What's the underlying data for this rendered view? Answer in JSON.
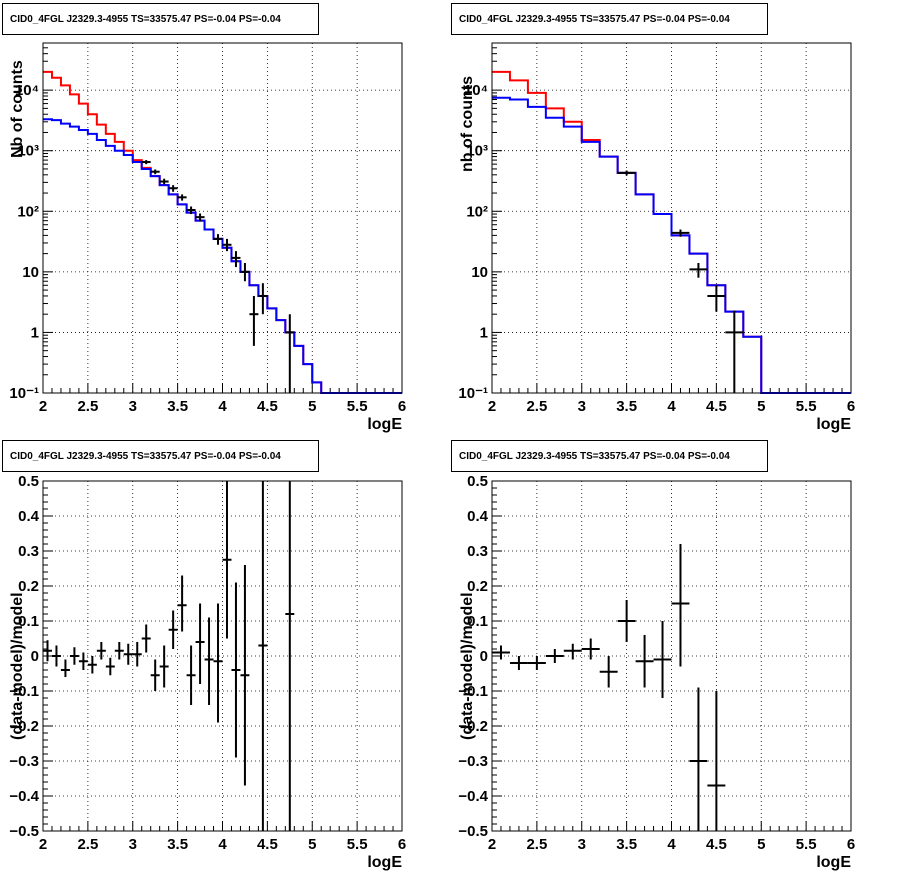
{
  "chart_data": [
    {
      "type": "histogram",
      "title": "CID0_4FGL J2329.3-4955 TS=33575.47 PS=-0.04 PS=-0.04",
      "xlabel": "logE",
      "ylabel": "Nb of counts",
      "xlim": [
        2,
        6
      ],
      "ylim": [
        0.1,
        60000
      ],
      "ylog": true,
      "grid": true,
      "xticks": [
        "2",
        "2.5",
        "3",
        "3.5",
        "4",
        "4.5",
        "5",
        "5.5",
        "6"
      ],
      "yticks": [
        {
          "v": 0.1,
          "label": "10⁻¹"
        },
        {
          "v": 1,
          "label": "1"
        },
        {
          "v": 10,
          "label": "10"
        },
        {
          "v": 100,
          "label": "10²"
        },
        {
          "v": 1000,
          "label": "10³"
        },
        {
          "v": 10000,
          "label": "10⁴"
        }
      ],
      "bin_edges": [
        2.0,
        2.1,
        2.2,
        2.3,
        2.4,
        2.5,
        2.6,
        2.7,
        2.8,
        2.9,
        3.0,
        3.1,
        3.2,
        3.3,
        3.4,
        3.5,
        3.6,
        3.7,
        3.8,
        3.9,
        4.0,
        4.1,
        4.2,
        4.3,
        4.4,
        4.5,
        4.6,
        4.7,
        4.8,
        4.9,
        5.0,
        5.1,
        5.2,
        5.3,
        5.4,
        5.5,
        5.6,
        5.7,
        5.8,
        5.9,
        6.0
      ],
      "series": [
        {
          "color": "#ff0000",
          "values": [
            20000,
            16000,
            12000,
            8500,
            6000,
            4000,
            2700,
            1900,
            1400,
            1000,
            700,
            520,
            380,
            270,
            190,
            130,
            95,
            70,
            50,
            35,
            25,
            15,
            10,
            6,
            4,
            2.5,
            1.6,
            1.0,
            0.6,
            0.3,
            0.15,
            0.1,
            0.1,
            0.1,
            0.1,
            0.1,
            0.1,
            0.1,
            0.1,
            0.1
          ]
        },
        {
          "color": "#0000ff",
          "values": [
            3300,
            3200,
            2800,
            2500,
            2200,
            1900,
            1500,
            1200,
            1000,
            850,
            650,
            500,
            380,
            270,
            190,
            130,
            95,
            70,
            50,
            35,
            25,
            15,
            10,
            6,
            4,
            2.5,
            1.6,
            1.0,
            0.6,
            0.3,
            0.15,
            0.1,
            0.1,
            0.1,
            0.1,
            0.1,
            0.1,
            0.1,
            0.1,
            0.1
          ]
        }
      ],
      "points": [
        {
          "x": 3.15,
          "y": 650,
          "lo": 600,
          "hi": 700
        },
        {
          "x": 3.25,
          "y": 450,
          "lo": 410,
          "hi": 490
        },
        {
          "x": 3.35,
          "y": 310,
          "lo": 280,
          "hi": 345
        },
        {
          "x": 3.45,
          "y": 240,
          "lo": 210,
          "hi": 270
        },
        {
          "x": 3.55,
          "y": 170,
          "lo": 150,
          "hi": 190
        },
        {
          "x": 3.65,
          "y": 105,
          "lo": 90,
          "hi": 120
        },
        {
          "x": 3.75,
          "y": 80,
          "lo": 68,
          "hi": 92
        },
        {
          "x": 3.95,
          "y": 35,
          "lo": 28,
          "hi": 42
        },
        {
          "x": 4.05,
          "y": 28,
          "lo": 22,
          "hi": 35
        },
        {
          "x": 4.15,
          "y": 17,
          "lo": 12,
          "hi": 22
        },
        {
          "x": 4.25,
          "y": 10,
          "lo": 7,
          "hi": 14
        },
        {
          "x": 4.35,
          "y": 2,
          "lo": 0.6,
          "hi": 4
        },
        {
          "x": 4.45,
          "y": 4,
          "lo": 2,
          "hi": 6.5
        },
        {
          "x": 4.75,
          "y": 1,
          "lo": 0.1,
          "hi": 2
        }
      ]
    },
    {
      "type": "histogram",
      "title": "CID0_4FGL J2329.3-4955 TS=33575.47 PS=-0.04 PS=-0.04",
      "xlabel": "logE",
      "ylabel": "nb of counts",
      "xlim": [
        2,
        6
      ],
      "ylim": [
        0.1,
        60000
      ],
      "ylog": true,
      "grid": true,
      "xticks": [
        "2",
        "2.5",
        "3",
        "3.5",
        "4",
        "4.5",
        "5",
        "5.5",
        "6"
      ],
      "yticks": [
        {
          "v": 0.1,
          "label": "10⁻¹"
        },
        {
          "v": 1,
          "label": "1"
        },
        {
          "v": 10,
          "label": "10"
        },
        {
          "v": 100,
          "label": "10²"
        },
        {
          "v": 1000,
          "label": "10³"
        },
        {
          "v": 10000,
          "label": "10⁴"
        }
      ],
      "bin_edges": [
        2.0,
        2.2,
        2.4,
        2.6,
        2.8,
        3.0,
        3.2,
        3.4,
        3.6,
        3.8,
        4.0,
        4.2,
        4.4,
        4.6,
        4.8,
        5.0,
        5.2,
        5.4,
        5.6,
        5.8,
        6.0
      ],
      "series": [
        {
          "color": "#ff0000",
          "values": [
            20000,
            14500,
            9000,
            5000,
            3000,
            1500,
            800,
            430,
            190,
            90,
            40,
            20,
            6,
            2.2,
            0.85,
            0.1,
            0.1,
            0.1,
            0.1,
            0.1
          ]
        },
        {
          "color": "#0000ff",
          "values": [
            7500,
            7000,
            5300,
            3500,
            2500,
            1400,
            800,
            430,
            190,
            90,
            40,
            20,
            6,
            2.2,
            0.85,
            0.1,
            0.1,
            0.1,
            0.1,
            0.1
          ]
        }
      ],
      "points": [
        {
          "x": 3.5,
          "y": 430,
          "lo": 390,
          "hi": 470
        },
        {
          "x": 4.1,
          "y": 44,
          "lo": 38,
          "hi": 50
        },
        {
          "x": 4.3,
          "y": 11,
          "lo": 8,
          "hi": 14
        },
        {
          "x": 4.5,
          "y": 4,
          "lo": 2.2,
          "hi": 6
        },
        {
          "x": 4.7,
          "y": 1,
          "lo": 0.1,
          "hi": 2.3
        }
      ]
    },
    {
      "type": "scatter",
      "title": "CID0_4FGL J2329.3-4955 TS=33575.47 PS=-0.04 PS=-0.04",
      "xlabel": "logE",
      "ylabel": "(data-model)/model",
      "xlim": [
        2,
        6
      ],
      "ylim": [
        -0.5,
        0.5
      ],
      "ylog": false,
      "grid": true,
      "xticks": [
        "2",
        "2.5",
        "3",
        "3.5",
        "4",
        "4.5",
        "5",
        "5.5",
        "6"
      ],
      "yticks": [
        {
          "v": -0.5,
          "label": "−0.5"
        },
        {
          "v": -0.4,
          "label": "−0.4"
        },
        {
          "v": -0.3,
          "label": "−0.3"
        },
        {
          "v": -0.2,
          "label": "−0.2"
        },
        {
          "v": -0.1,
          "label": "−0.1"
        },
        {
          "v": 0,
          "label": "0"
        },
        {
          "v": 0.1,
          "label": "0.1"
        },
        {
          "v": 0.2,
          "label": "0.2"
        },
        {
          "v": 0.3,
          "label": "0.3"
        },
        {
          "v": 0.4,
          "label": "0.4"
        },
        {
          "v": 0.5,
          "label": "0.5"
        }
      ],
      "xhalf": 0.05,
      "points": [
        {
          "x": 2.05,
          "y": 0.015,
          "lo": -0.015,
          "hi": 0.045
        },
        {
          "x": 2.15,
          "y": 0.0,
          "lo": -0.03,
          "hi": 0.03
        },
        {
          "x": 2.25,
          "y": -0.04,
          "lo": -0.06,
          "hi": -0.01
        },
        {
          "x": 2.35,
          "y": 0.0,
          "lo": -0.025,
          "hi": 0.025
        },
        {
          "x": 2.45,
          "y": -0.015,
          "lo": -0.04,
          "hi": 0.01
        },
        {
          "x": 2.55,
          "y": -0.025,
          "lo": -0.05,
          "hi": 0.0
        },
        {
          "x": 2.65,
          "y": 0.015,
          "lo": -0.01,
          "hi": 0.04
        },
        {
          "x": 2.75,
          "y": -0.03,
          "lo": -0.055,
          "hi": -0.005
        },
        {
          "x": 2.85,
          "y": 0.015,
          "lo": -0.01,
          "hi": 0.04
        },
        {
          "x": 2.95,
          "y": 0.005,
          "lo": -0.025,
          "hi": 0.035
        },
        {
          "x": 3.05,
          "y": 0.005,
          "lo": -0.03,
          "hi": 0.04
        },
        {
          "x": 3.15,
          "y": 0.05,
          "lo": 0.01,
          "hi": 0.09
        },
        {
          "x": 3.25,
          "y": -0.055,
          "lo": -0.1,
          "hi": -0.01
        },
        {
          "x": 3.35,
          "y": -0.03,
          "lo": -0.09,
          "hi": 0.03
        },
        {
          "x": 3.45,
          "y": 0.075,
          "lo": 0.02,
          "hi": 0.13
        },
        {
          "x": 3.55,
          "y": 0.145,
          "lo": 0.07,
          "hi": 0.23
        },
        {
          "x": 3.65,
          "y": -0.055,
          "lo": -0.14,
          "hi": 0.03
        },
        {
          "x": 3.75,
          "y": 0.04,
          "lo": -0.08,
          "hi": 0.15
        },
        {
          "x": 3.85,
          "y": -0.01,
          "lo": -0.14,
          "hi": 0.11
        },
        {
          "x": 3.95,
          "y": -0.015,
          "lo": -0.19,
          "hi": 0.15
        },
        {
          "x": 4.05,
          "y": 0.275,
          "lo": 0.05,
          "hi": 0.5
        },
        {
          "x": 4.15,
          "y": -0.04,
          "lo": -0.29,
          "hi": 0.21
        },
        {
          "x": 4.25,
          "y": -0.055,
          "lo": -0.37,
          "hi": 0.26
        },
        {
          "x": 4.45,
          "y": 0.03,
          "lo": -0.5,
          "hi": 0.5
        },
        {
          "x": 4.75,
          "y": 0.12,
          "lo": -0.5,
          "hi": 0.5
        }
      ]
    },
    {
      "type": "scatter",
      "title": "CID0_4FGL J2329.3-4955 TS=33575.47 PS=-0.04 PS=-0.04",
      "xlabel": "logE",
      "ylabel": "(data-model)/model",
      "xlim": [
        2,
        6
      ],
      "ylim": [
        -0.5,
        0.5
      ],
      "ylog": false,
      "grid": true,
      "xticks": [
        "2",
        "2.5",
        "3",
        "3.5",
        "4",
        "4.5",
        "5",
        "5.5",
        "6"
      ],
      "yticks": [
        {
          "v": -0.5,
          "label": "−0.5"
        },
        {
          "v": -0.4,
          "label": "−0.4"
        },
        {
          "v": -0.3,
          "label": "−0.3"
        },
        {
          "v": -0.2,
          "label": "−0.2"
        },
        {
          "v": -0.1,
          "label": "−0.1"
        },
        {
          "v": 0,
          "label": "0"
        },
        {
          "v": 0.1,
          "label": "0.1"
        },
        {
          "v": 0.2,
          "label": "0.2"
        },
        {
          "v": 0.3,
          "label": "0.3"
        },
        {
          "v": 0.4,
          "label": "0.4"
        },
        {
          "v": 0.5,
          "label": "0.5"
        }
      ],
      "xhalf": 0.1,
      "points": [
        {
          "x": 2.1,
          "y": 0.01,
          "lo": -0.01,
          "hi": 0.03
        },
        {
          "x": 2.3,
          "y": -0.02,
          "lo": -0.04,
          "hi": 0.0
        },
        {
          "x": 2.5,
          "y": -0.02,
          "lo": -0.04,
          "hi": 0.0
        },
        {
          "x": 2.7,
          "y": 0.0,
          "lo": -0.02,
          "hi": 0.02
        },
        {
          "x": 2.9,
          "y": 0.015,
          "lo": -0.01,
          "hi": 0.035
        },
        {
          "x": 3.1,
          "y": 0.02,
          "lo": -0.01,
          "hi": 0.05
        },
        {
          "x": 3.3,
          "y": -0.045,
          "lo": -0.09,
          "hi": 0.0
        },
        {
          "x": 3.5,
          "y": 0.1,
          "lo": 0.04,
          "hi": 0.16
        },
        {
          "x": 3.7,
          "y": -0.015,
          "lo": -0.09,
          "hi": 0.06
        },
        {
          "x": 3.9,
          "y": -0.01,
          "lo": -0.12,
          "hi": 0.1
        },
        {
          "x": 4.1,
          "y": 0.15,
          "lo": -0.03,
          "hi": 0.32
        },
        {
          "x": 4.3,
          "y": -0.3,
          "lo": -0.5,
          "hi": -0.09
        },
        {
          "x": 4.5,
          "y": -0.37,
          "lo": -0.5,
          "hi": -0.1
        }
      ]
    }
  ]
}
